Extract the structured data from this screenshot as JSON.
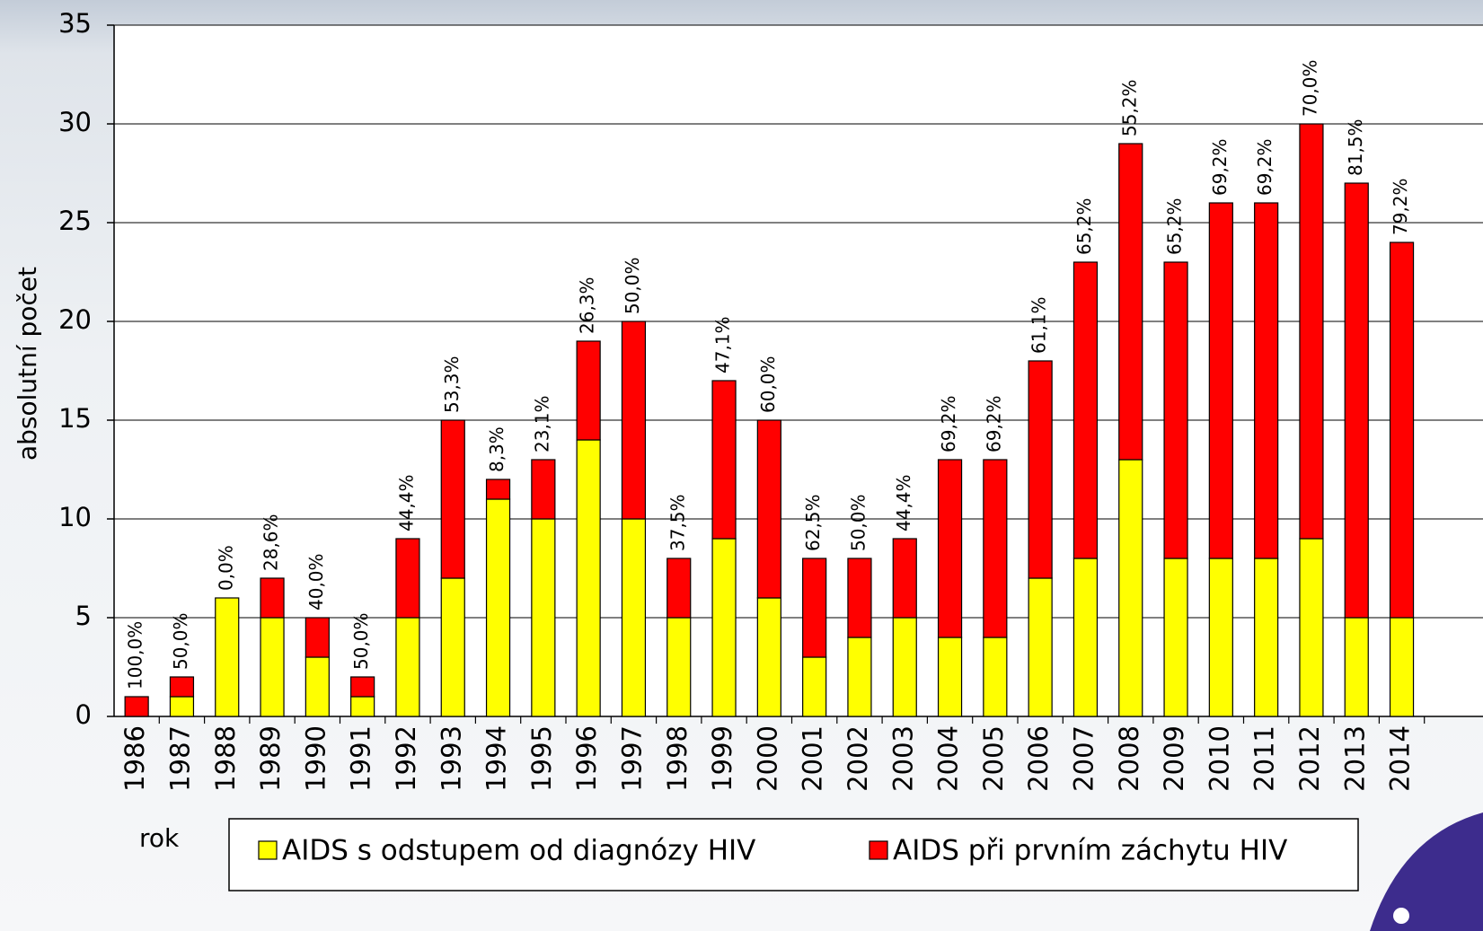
{
  "chart_data": {
    "type": "stacked_bar",
    "y_label": "absolutní počet",
    "x_label": "rok",
    "categories": [
      "1986",
      "1987",
      "1988",
      "1989",
      "1990",
      "1991",
      "1992",
      "1993",
      "1994",
      "1995",
      "1996",
      "1997",
      "1998",
      "1999",
      "2000",
      "2001",
      "2002",
      "2003",
      "2004",
      "2005",
      "2006",
      "2007",
      "2008",
      "2009",
      "2010",
      "2011",
      "2012",
      "2013",
      "2014"
    ],
    "series": [
      {
        "name": "AIDS s odstupem od diagnózy HIV",
        "color": "#ffff00",
        "values": [
          0,
          1,
          6,
          5,
          3,
          1,
          5,
          7,
          11,
          10,
          14,
          10,
          5,
          9,
          6,
          3,
          4,
          5,
          4,
          4,
          7,
          8,
          13,
          8,
          8,
          8,
          9,
          5,
          5
        ]
      },
      {
        "name": "AIDS při prvním záchytu HIV",
        "color": "#ff0000",
        "values": [
          1,
          1,
          0,
          2,
          2,
          1,
          4,
          8,
          1,
          3,
          5,
          10,
          3,
          8,
          9,
          5,
          4,
          4,
          9,
          9,
          11,
          15,
          16,
          15,
          18,
          18,
          21,
          22,
          19
        ]
      }
    ],
    "annotations": [
      "100,0%",
      "50,0%",
      "0,0%",
      "28,6%",
      "40,0%",
      "50,0%",
      "44,4%",
      "53,3%",
      "8,3%",
      "23,1%",
      "26,3%",
      "50,0%",
      "37,5%",
      "47,1%",
      "60,0%",
      "62,5%",
      "50,0%",
      "44,4%",
      "69,2%",
      "69,2%",
      "61,1%",
      "65,2%",
      "55,2%",
      "65,2%",
      "69,2%",
      "69,2%",
      "70,0%",
      "81,5%",
      "79,2%"
    ],
    "ylim": [
      0,
      35
    ],
    "yticks": [
      0,
      5,
      10,
      15,
      20,
      25,
      30,
      35
    ],
    "grid": true,
    "legend": "bottom"
  }
}
